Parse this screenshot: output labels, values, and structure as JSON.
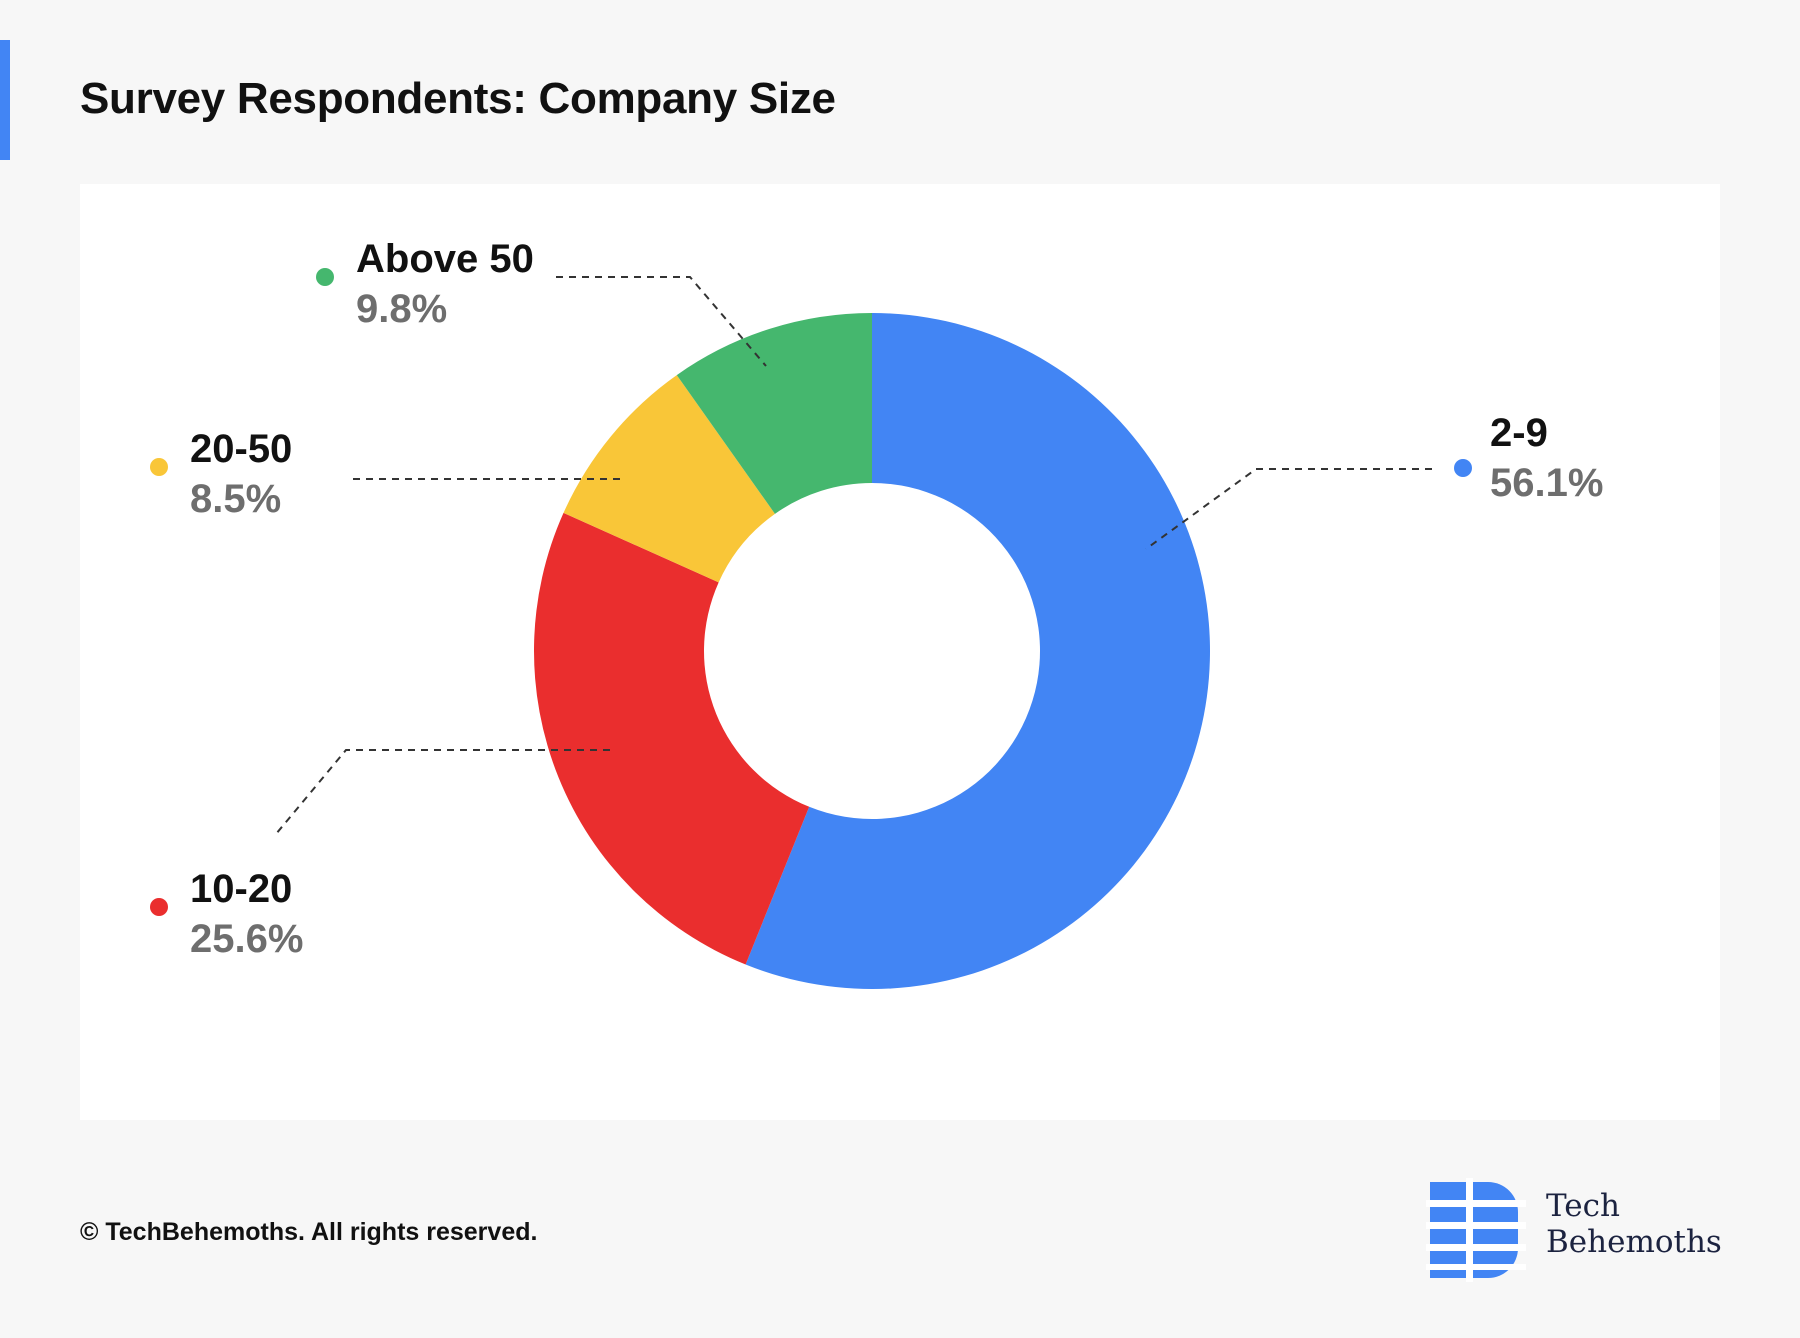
{
  "header": {
    "title": "Survey Respondents: Company Size"
  },
  "chart_data": {
    "type": "pie",
    "variant": "donut",
    "categories": [
      "2-9",
      "10-20",
      "20-50",
      "Above 50"
    ],
    "values": [
      56.1,
      25.6,
      8.5,
      9.8
    ],
    "labels": [
      "56.1%",
      "25.6%",
      "8.5%",
      "9.8%"
    ],
    "colors": [
      "#4285f4",
      "#ea2e2e",
      "#f9c638",
      "#45b76e"
    ],
    "title": "",
    "legend": "callouts"
  },
  "footer": {
    "copyright": "© TechBehemoths. All rights reserved."
  },
  "brand": {
    "name_line1": "Tech",
    "name_line2": "Behemoths",
    "color": "#4285f4"
  }
}
